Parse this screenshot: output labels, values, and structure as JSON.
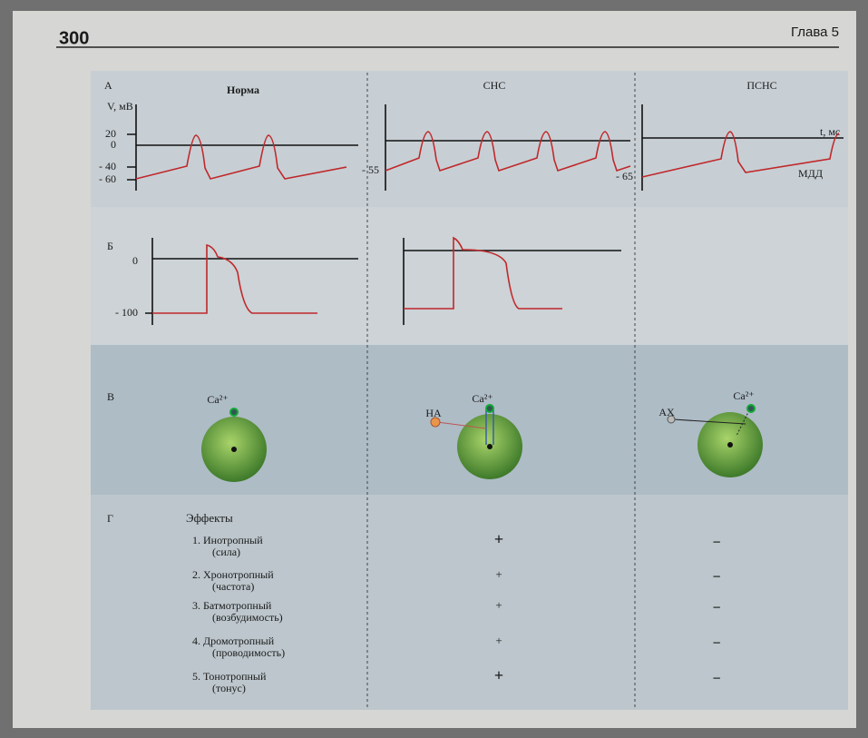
{
  "header": {
    "page_number": "300",
    "chapter": "Глава 5"
  },
  "panel_a": {
    "label": "А",
    "columns": [
      "Норма",
      "СНС",
      "ПСНС"
    ],
    "y_axis_label": "V, мВ",
    "x_axis_label": "t, мс",
    "norm_ticks": [
      "20",
      "0",
      "- 40",
      "- 60"
    ],
    "sns_tick": "- 55",
    "psns_tick": "- 65",
    "mdd_label": "МДД"
  },
  "panel_b": {
    "label": "Б",
    "ticks": [
      "0",
      "- 100"
    ]
  },
  "panel_c": {
    "label": "В",
    "ion": "Ca²⁺",
    "sns_mediator": "НА",
    "psns_mediator": "АХ"
  },
  "panel_d": {
    "label": "Г",
    "heading": "Эффекты",
    "rows": [
      {
        "name": "1. Инотропный",
        "note": "(сила)",
        "sns": "+",
        "psns": "−"
      },
      {
        "name": "2. Хронотропный",
        "note": "(частота)",
        "sns": "+",
        "psns": "−"
      },
      {
        "name": "3. Батмотропный",
        "note": "(возбудимость)",
        "sns": "+",
        "psns": "−"
      },
      {
        "name": "4. Дромотропный",
        "note": "(проводимость)",
        "sns": "+",
        "psns": "−"
      },
      {
        "name": "5. Тонотропный",
        "note": "(тонус)",
        "sns": "+",
        "psns": "−"
      }
    ]
  }
}
